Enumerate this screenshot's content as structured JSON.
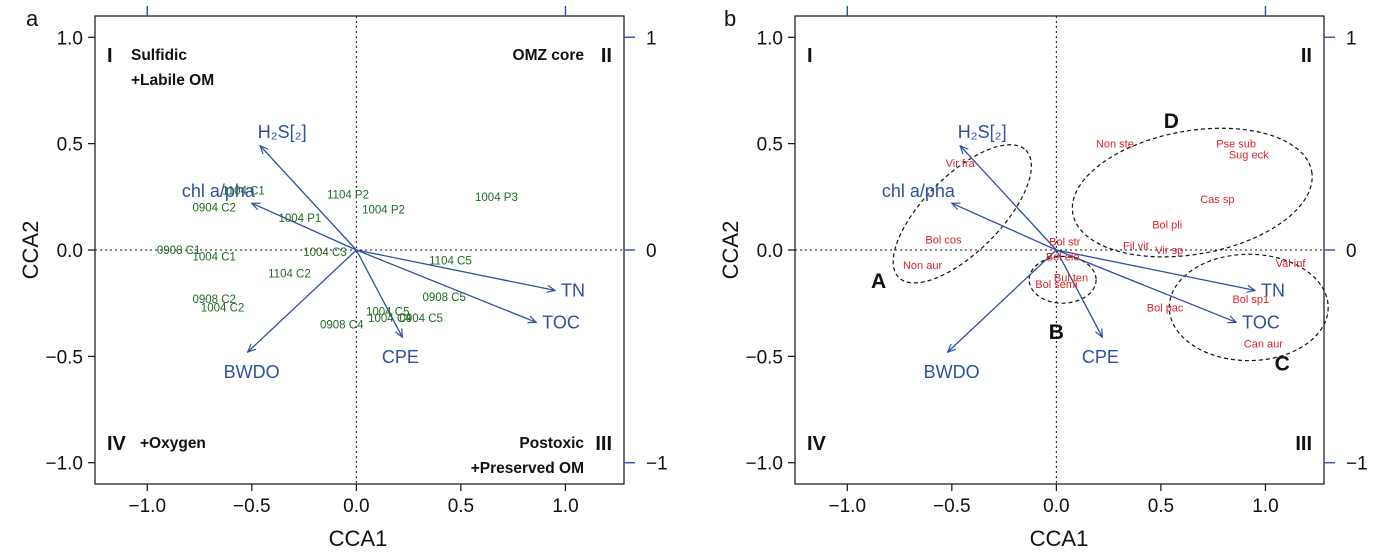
{
  "chart_data": [
    {
      "panel_label": "a",
      "type": "scatter",
      "xlabel": "CCA1",
      "ylabel": "CCA2",
      "xlim": [
        -1.25,
        1.28
      ],
      "ylim": [
        -1.1,
        1.1
      ],
      "left_ticks": [
        "−1.0",
        "−0.5",
        "0.0",
        "0.5",
        "1.0"
      ],
      "left_tick_values": [
        -1.0,
        -0.5,
        0.0,
        0.5,
        1.0
      ],
      "bottom_ticks": [
        "−1.0",
        "−0.5",
        "0.0",
        "0.5",
        "1.0"
      ],
      "bottom_tick_values": [
        -1.0,
        -0.5,
        0.0,
        0.5,
        1.0
      ],
      "right_ticks": [
        "1",
        "0",
        "−1"
      ],
      "right_tick_values": [
        1.0,
        0.0,
        -1.0
      ],
      "top_tick_values": [
        -1.0,
        1.0
      ],
      "quadrants": [
        {
          "roman": "I",
          "text": [
            "Sulfidic",
            "+Labile OM"
          ],
          "corner": "top-left"
        },
        {
          "roman": "II",
          "text": [
            "OMZ core"
          ],
          "corner": "top-right"
        },
        {
          "roman": "III",
          "text": [
            "Postoxic",
            "+Preserved OM"
          ],
          "corner": "bottom-right"
        },
        {
          "roman": "IV",
          "text": [
            "+Oxygen"
          ],
          "corner": "bottom-left"
        }
      ],
      "arrows": [
        {
          "label": "TN",
          "x": 0.95,
          "y": -0.19
        },
        {
          "label": "TOC",
          "x": 0.86,
          "y": -0.34
        },
        {
          "label": "CPE",
          "x": 0.22,
          "y": -0.41
        },
        {
          "label": "BWDO",
          "x": -0.52,
          "y": -0.48
        },
        {
          "label": "chl a/pha",
          "x": -0.5,
          "y": 0.22
        },
        {
          "label": "H₂S[₂]",
          "x": -0.46,
          "y": 0.49
        }
      ],
      "points": [
        {
          "label": "1104 C1",
          "x": -0.54,
          "y": 0.28
        },
        {
          "label": "0904 C2",
          "x": -0.68,
          "y": 0.2
        },
        {
          "label": "1104 P2",
          "x": -0.04,
          "y": 0.26
        },
        {
          "label": "1004 P2",
          "x": 0.13,
          "y": 0.19
        },
        {
          "label": "1004 P3",
          "x": 0.67,
          "y": 0.25
        },
        {
          "label": "1004 P1",
          "x": -0.27,
          "y": 0.15
        },
        {
          "label": "0908 C1",
          "x": -0.85,
          "y": 0.0
        },
        {
          "label": "1004 C1",
          "x": -0.68,
          "y": -0.03
        },
        {
          "label": "1004 C3",
          "x": -0.15,
          "y": -0.01
        },
        {
          "label": "1104 C5",
          "x": 0.45,
          "y": -0.05
        },
        {
          "label": "1104 C2",
          "x": -0.32,
          "y": -0.11
        },
        {
          "label": "0908 C2",
          "x": -0.68,
          "y": -0.23
        },
        {
          "label": "1004 C2",
          "x": -0.64,
          "y": -0.27
        },
        {
          "label": "0908 C5",
          "x": 0.42,
          "y": -0.22
        },
        {
          "label": "1004 C5",
          "x": 0.15,
          "y": -0.29
        },
        {
          "label": "1004 C4",
          "x": 0.16,
          "y": -0.32
        },
        {
          "label": "0904 C5",
          "x": 0.31,
          "y": -0.32
        },
        {
          "label": "0908 C4",
          "x": -0.07,
          "y": -0.35
        }
      ]
    },
    {
      "panel_label": "b",
      "type": "scatter",
      "xlabel": "CCA1",
      "ylabel": "CCA2",
      "xlim": [
        -1.25,
        1.28
      ],
      "ylim": [
        -1.1,
        1.1
      ],
      "left_ticks": [
        "−1.0",
        "−0.5",
        "0.0",
        "0.5",
        "1.0"
      ],
      "left_tick_values": [
        -1.0,
        -0.5,
        0.0,
        0.5,
        1.0
      ],
      "bottom_ticks": [
        "−1.0",
        "−0.5",
        "0.0",
        "0.5",
        "1.0"
      ],
      "bottom_tick_values": [
        -1.0,
        -0.5,
        0.0,
        0.5,
        1.0
      ],
      "right_ticks": [
        "1",
        "0",
        "−1"
      ],
      "right_tick_values": [
        1.0,
        0.0,
        -1.0
      ],
      "top_tick_values": [
        -1.0,
        1.0
      ],
      "quadrants": [
        {
          "roman": "I",
          "text": [],
          "corner": "top-left"
        },
        {
          "roman": "II",
          "text": [],
          "corner": "top-right"
        },
        {
          "roman": "III",
          "text": [],
          "corner": "bottom-right"
        },
        {
          "roman": "IV",
          "text": [],
          "corner": "bottom-left"
        }
      ],
      "arrows": [
        {
          "label": "TN",
          "x": 0.95,
          "y": -0.19
        },
        {
          "label": "TOC",
          "x": 0.86,
          "y": -0.34
        },
        {
          "label": "CPE",
          "x": 0.22,
          "y": -0.41
        },
        {
          "label": "BWDO",
          "x": -0.52,
          "y": -0.48
        },
        {
          "label": "chl a/pha",
          "x": -0.5,
          "y": 0.22
        },
        {
          "label": "H₂S[₂]",
          "x": -0.46,
          "y": 0.49
        }
      ],
      "points": [
        {
          "label": "Vir fra",
          "x": -0.46,
          "y": 0.41
        },
        {
          "label": "Bol cos",
          "x": -0.54,
          "y": 0.05
        },
        {
          "label": "Non aur",
          "x": -0.64,
          "y": -0.07
        },
        {
          "label": "Non ste",
          "x": 0.28,
          "y": 0.5
        },
        {
          "label": "Pse sub",
          "x": 0.86,
          "y": 0.5
        },
        {
          "label": "Sug eck",
          "x": 0.92,
          "y": 0.45
        },
        {
          "label": "Cas sp",
          "x": 0.77,
          "y": 0.24
        },
        {
          "label": "Bol pli",
          "x": 0.53,
          "y": 0.12
        },
        {
          "label": "Bol str",
          "x": 0.04,
          "y": 0.04
        },
        {
          "label": "Fil vit",
          "x": 0.38,
          "y": 0.02
        },
        {
          "label": "Vir sp",
          "x": 0.54,
          "y": 0.0
        },
        {
          "label": "Bol ele",
          "x": 0.03,
          "y": -0.03
        },
        {
          "label": "Bul ten",
          "x": 0.07,
          "y": -0.13
        },
        {
          "label": "Bol semi",
          "x": 0.0,
          "y": -0.16
        },
        {
          "label": "Val inf",
          "x": 1.12,
          "y": -0.06
        },
        {
          "label": "Bol sp1",
          "x": 0.93,
          "y": -0.23
        },
        {
          "label": "Bol pac",
          "x": 0.52,
          "y": -0.27
        },
        {
          "label": "Can aur",
          "x": 0.99,
          "y": -0.44
        }
      ],
      "ellipses": [
        {
          "label": "A",
          "cx": -0.45,
          "cy": 0.17,
          "rx": 0.43,
          "ry": 0.18,
          "angle": 45,
          "label_x": -0.85,
          "label_y": -0.14
        },
        {
          "label": "B",
          "cx": 0.03,
          "cy": -0.14,
          "rx": 0.16,
          "ry": 0.11,
          "angle": 0,
          "label_x": 0.0,
          "label_y": -0.38
        },
        {
          "label": "C",
          "cx": 0.92,
          "cy": -0.27,
          "rx": 0.38,
          "ry": 0.25,
          "angle": 0,
          "label_x": 1.08,
          "label_y": -0.53
        },
        {
          "label": "D",
          "cx": 0.65,
          "cy": 0.27,
          "rx": 0.58,
          "ry": 0.29,
          "angle": 10,
          "label_x": 0.55,
          "label_y": 0.61
        }
      ]
    }
  ]
}
